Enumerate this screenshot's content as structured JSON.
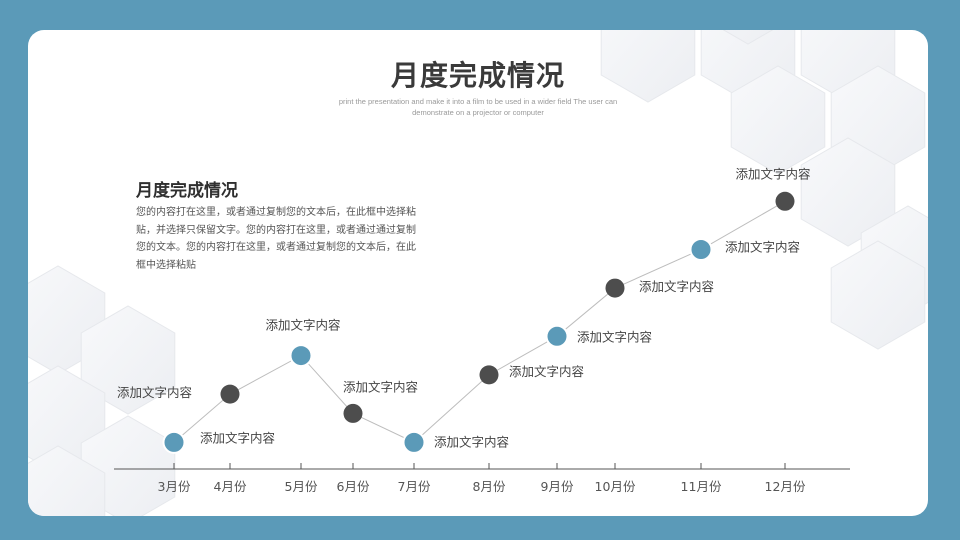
{
  "slide": {
    "title": "月度完成情况",
    "subtitle": "print the presentation and make it into a film to be used in a wider field The user can demonstrate on a projector or computer",
    "section_title": "月度完成情况",
    "section_body": "您的内容打在这里，或者通过复制您的文本后，在此框中选择粘贴，并选择只保留文字。您的内容打在这里，或者通过通过复制您的文本。您的内容打在这里，或者通过复制您的文本后，在此框中选择粘贴"
  },
  "colors": {
    "background": "#5b9ab8",
    "card": "#ffffff",
    "accent_blue": "#5b9ab8",
    "accent_dark": "#4d4d4d",
    "line": "#bdbdbd",
    "axis": "#555555"
  },
  "chart_data": {
    "type": "line",
    "title": "",
    "xlabel": "",
    "ylabel": "",
    "categories": [
      "3月份",
      "4月份",
      "5月份",
      "6月份",
      "7月份",
      "8月份",
      "9月份",
      "10月份",
      "11月份",
      "12月份"
    ],
    "x": [
      3,
      4,
      5,
      6,
      7,
      8,
      9,
      10,
      11,
      12
    ],
    "values": [
      0.5,
      3,
      5,
      2,
      0.5,
      4,
      6,
      8.5,
      10.5,
      13
    ],
    "ylim": [
      0,
      14
    ],
    "grid": false,
    "point_colors": [
      "blue",
      "dark",
      "blue",
      "dark",
      "blue",
      "dark",
      "blue",
      "dark",
      "blue",
      "dark"
    ],
    "point_labels": [
      "添加文字内容",
      "添加文字内容",
      "添加文字内容",
      "添加文字内容",
      "添加文字内容",
      "添加文字内容",
      "添加文字内容",
      "添加文字内容",
      "添加文字内容",
      "添加文字内容"
    ],
    "legend": null
  }
}
